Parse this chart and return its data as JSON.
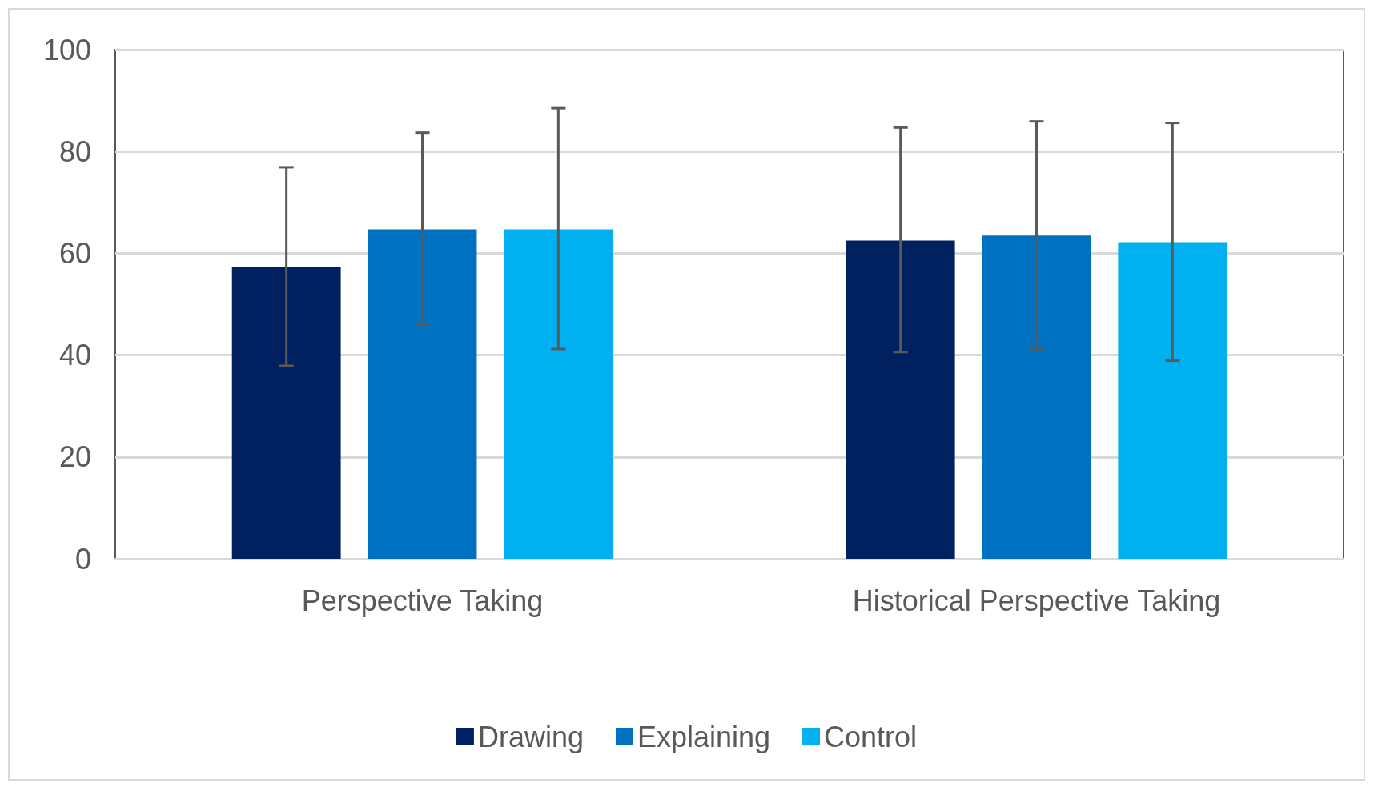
{
  "chart_data": {
    "type": "bar",
    "categories": [
      "Perspective Taking",
      "Historical Perspective Taking"
    ],
    "series": [
      {
        "name": "Drawing",
        "color": "#002060",
        "values": [
          57.3,
          62.5
        ],
        "errors": [
          [
            37.9,
            76.9
          ],
          [
            40.6,
            84.7
          ]
        ]
      },
      {
        "name": "Explaining",
        "color": "#0070c0",
        "values": [
          64.7,
          63.5
        ],
        "errors": [
          [
            46.0,
            83.7
          ],
          [
            41.2,
            85.9
          ]
        ]
      },
      {
        "name": "Control",
        "color": "#00b0f0",
        "values": [
          64.7,
          62.2
        ],
        "errors": [
          [
            41.2,
            88.5
          ],
          [
            38.9,
            85.6
          ]
        ]
      }
    ],
    "ylim": [
      0,
      100
    ],
    "yticks": [
      0,
      20,
      40,
      60,
      80,
      100
    ],
    "grid": "y",
    "legend": "bottom"
  }
}
